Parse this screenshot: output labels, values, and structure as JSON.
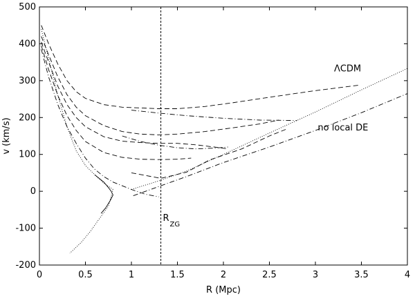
{
  "chart_data": {
    "type": "line",
    "title": "",
    "xlabel": "R (Mpc)",
    "ylabel": "v (km/s)",
    "xlim": [
      0,
      4
    ],
    "ylim": [
      -200,
      500
    ],
    "x_ticks": [
      0,
      0.5,
      1,
      1.5,
      2,
      2.5,
      3,
      3.5,
      4
    ],
    "x_tick_labels": [
      "0",
      "0.5",
      "1",
      "1.5",
      "2",
      "2.5",
      "3",
      "3.5",
      "4"
    ],
    "y_ticks": [
      -200,
      -100,
      0,
      100,
      200,
      300,
      400,
      500
    ],
    "y_tick_labels": [
      "-200",
      "-100",
      "0",
      "100",
      "200",
      "300",
      "400",
      "500"
    ],
    "grid": false,
    "legend": "none",
    "vline": {
      "x": 1.32,
      "label": "R",
      "label_sub": "ZG",
      "style": "dashed"
    },
    "annotations": [
      {
        "text": "ΛCDM",
        "x": 3.35,
        "y": 325
      },
      {
        "text": "no local DE",
        "x": 3.3,
        "y": 165
      }
    ],
    "series": [
      {
        "style": "dashed",
        "color": "#000000",
        "points": [
          [
            0.02,
            450
          ],
          [
            0.1,
            400
          ],
          [
            0.2,
            345
          ],
          [
            0.3,
            300
          ],
          [
            0.4,
            270
          ],
          [
            0.5,
            252
          ],
          [
            0.7,
            235
          ],
          [
            0.9,
            228
          ],
          [
            1.1,
            226
          ],
          [
            1.3,
            224
          ],
          [
            1.5,
            224
          ],
          [
            1.8,
            230
          ],
          [
            2.1,
            240
          ],
          [
            2.5,
            255
          ],
          [
            3.0,
            273
          ],
          [
            3.48,
            288
          ]
        ]
      },
      {
        "style": "dashdot",
        "color": "#000000",
        "points": [
          [
            1.0,
            220
          ],
          [
            1.3,
            212
          ],
          [
            1.6,
            205
          ],
          [
            2.0,
            198
          ],
          [
            2.4,
            193
          ],
          [
            2.8,
            192
          ]
        ]
      },
      {
        "style": "dashed",
        "color": "#000000",
        "points": [
          [
            0.02,
            420
          ],
          [
            0.1,
            370
          ],
          [
            0.2,
            310
          ],
          [
            0.3,
            262
          ],
          [
            0.4,
            228
          ],
          [
            0.5,
            205
          ],
          [
            0.7,
            178
          ],
          [
            0.9,
            162
          ],
          [
            1.1,
            155
          ],
          [
            1.3,
            153
          ],
          [
            1.5,
            155
          ],
          [
            1.8,
            162
          ],
          [
            2.1,
            172
          ],
          [
            2.4,
            183
          ],
          [
            2.6,
            193
          ]
        ]
      },
      {
        "style": "dashed",
        "color": "#000000",
        "points": [
          [
            0.02,
            405
          ],
          [
            0.1,
            350
          ],
          [
            0.2,
            285
          ],
          [
            0.3,
            235
          ],
          [
            0.4,
            200
          ],
          [
            0.5,
            175
          ],
          [
            0.7,
            148
          ],
          [
            0.9,
            136
          ],
          [
            1.1,
            132
          ],
          [
            1.3,
            130
          ],
          [
            1.5,
            130
          ],
          [
            1.7,
            126
          ],
          [
            1.9,
            120
          ],
          [
            2.05,
            115
          ]
        ]
      },
      {
        "style": "dashdot",
        "color": "#000000",
        "points": [
          [
            0.9,
            150
          ],
          [
            1.1,
            135
          ],
          [
            1.3,
            125
          ],
          [
            1.5,
            118
          ],
          [
            1.7,
            115
          ],
          [
            1.9,
            117
          ],
          [
            2.05,
            120
          ]
        ]
      },
      {
        "style": "dashed",
        "color": "#000000",
        "points": [
          [
            0.02,
            395
          ],
          [
            0.1,
            330
          ],
          [
            0.2,
            260
          ],
          [
            0.3,
            205
          ],
          [
            0.4,
            165
          ],
          [
            0.5,
            135
          ],
          [
            0.7,
            105
          ],
          [
            0.9,
            92
          ],
          [
            1.1,
            87
          ],
          [
            1.3,
            86
          ],
          [
            1.5,
            87
          ],
          [
            1.65,
            90
          ]
        ]
      },
      {
        "style": "dashdot",
        "color": "#000000",
        "points": [
          [
            0.02,
            385
          ],
          [
            0.1,
            310
          ],
          [
            0.2,
            235
          ],
          [
            0.3,
            175
          ],
          [
            0.4,
            130
          ],
          [
            0.5,
            90
          ],
          [
            0.6,
            60
          ],
          [
            0.7,
            40
          ],
          [
            0.8,
            25
          ],
          [
            1.0,
            5
          ],
          [
            1.15,
            -8
          ],
          [
            1.3,
            -15
          ]
        ]
      },
      {
        "style": "dotted",
        "color": "#000000",
        "points": [
          [
            0.02,
            440
          ],
          [
            0.1,
            360
          ],
          [
            0.2,
            260
          ],
          [
            0.3,
            175
          ],
          [
            0.4,
            110
          ],
          [
            0.5,
            70
          ],
          [
            0.6,
            45
          ],
          [
            0.7,
            22
          ],
          [
            0.8,
            5
          ],
          [
            0.75,
            -40
          ],
          [
            0.65,
            -75
          ],
          [
            0.55,
            -110
          ],
          [
            0.45,
            -140
          ],
          [
            0.33,
            -168
          ]
        ]
      },
      {
        "style": "solid",
        "color": "#000000",
        "points": [
          [
            0.6,
            45
          ],
          [
            0.7,
            25
          ],
          [
            0.75,
            10
          ],
          [
            0.78,
            0
          ],
          [
            0.8,
            -10
          ],
          [
            0.77,
            -25
          ],
          [
            0.72,
            -45
          ],
          [
            0.67,
            -60
          ]
        ]
      },
      {
        "style": "dotted",
        "color": "#000000",
        "points": [
          [
            1.0,
            5
          ],
          [
            1.32,
            30
          ],
          [
            1.6,
            55
          ],
          [
            2.0,
            100
          ],
          [
            2.5,
            158
          ],
          [
            3.0,
            215
          ],
          [
            3.5,
            275
          ],
          [
            4.0,
            333
          ]
        ]
      },
      {
        "style": "dashdot",
        "color": "#000000",
        "points": [
          [
            1.02,
            -12
          ],
          [
            1.32,
            15
          ],
          [
            1.6,
            40
          ],
          [
            2.0,
            78
          ],
          [
            2.5,
            120
          ],
          [
            3.0,
            165
          ],
          [
            3.5,
            213
          ],
          [
            4.0,
            265
          ]
        ]
      },
      {
        "style": "dashed",
        "color": "#000000",
        "points": [
          [
            1.0,
            50
          ],
          [
            1.32,
            35
          ],
          [
            1.6,
            52
          ],
          [
            1.85,
            85
          ],
          [
            2.2,
            115
          ],
          [
            2.5,
            150
          ],
          [
            2.7,
            170
          ]
        ]
      }
    ]
  }
}
